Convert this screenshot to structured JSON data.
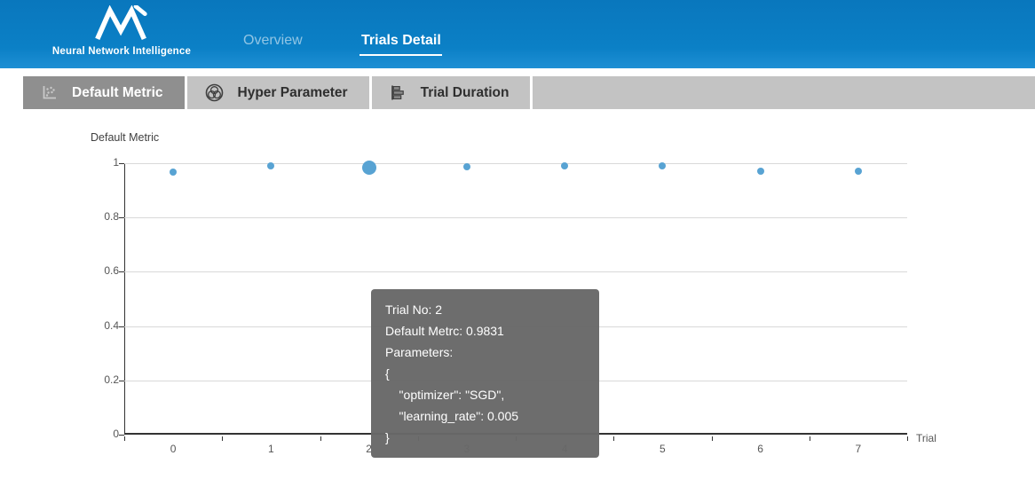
{
  "header": {
    "logo_text": "Neural Network Intelligence",
    "nav": [
      {
        "label": "Overview",
        "active": false
      },
      {
        "label": "Trials Detail",
        "active": true
      }
    ]
  },
  "tabbar": {
    "tabs": [
      {
        "label": "Default Metric",
        "icon": "scatter-chart-icon",
        "active": true
      },
      {
        "label": "Hyper Parameter",
        "icon": "venn-diagram-icon",
        "active": false
      },
      {
        "label": "Trial Duration",
        "icon": "horizontal-bars-icon",
        "active": false
      }
    ]
  },
  "chart_data": {
    "type": "scatter",
    "title": "Default Metric",
    "xlabel": "Trial",
    "ylabel": "",
    "x": [
      "0",
      "1",
      "2",
      "3",
      "4",
      "5",
      "6",
      "7"
    ],
    "values": [
      0.967,
      0.99,
      0.9831,
      0.988,
      0.991,
      0.989,
      0.97,
      0.969
    ],
    "ylim": [
      0,
      1
    ],
    "yticks": [
      0,
      0.2,
      0.4,
      0.6,
      0.8,
      1
    ],
    "grid": true,
    "legend": "none",
    "highlighted_index": 2,
    "point_color": "#58a3d3"
  },
  "tooltip": {
    "lines": [
      "Trial No: 2",
      "Default Metrc: 0.9831",
      "Parameters:",
      "{",
      "    \"optimizer\": \"SGD\",",
      "    \"learning_rate\": 0.005",
      "}"
    ]
  },
  "colors": {
    "header_blue": "#0b80c6",
    "active_tab_gray": "#8f8f8f",
    "inactive_tab_gray": "#c3c3c3",
    "point_blue": "#58a3d3",
    "tooltip_gray": "#686868"
  }
}
